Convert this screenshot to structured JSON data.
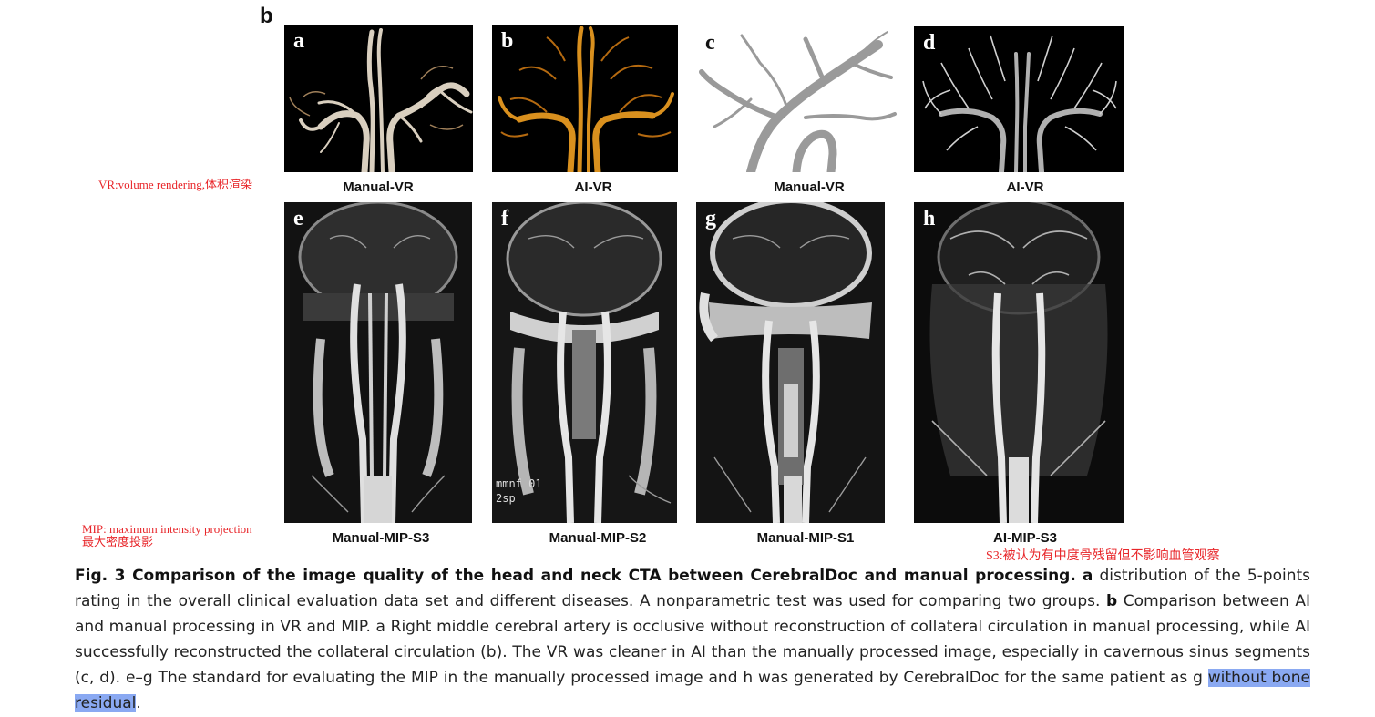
{
  "figure_label": "b",
  "panels": [
    {
      "letter": "a",
      "label": "Manual-VR"
    },
    {
      "letter": "b",
      "label": "AI-VR"
    },
    {
      "letter": "c",
      "label": "Manual-VR"
    },
    {
      "letter": "d",
      "label": "AI-VR"
    },
    {
      "letter": "e",
      "label": "Manual-MIP-S3"
    },
    {
      "letter": "f",
      "label": "Manual-MIP-S2"
    },
    {
      "letter": "g",
      "label": "Manual-MIP-S1"
    },
    {
      "letter": "h",
      "label": "AI-MIP-S3"
    }
  ],
  "overlay_text": {
    "panel_f": [
      "mmnf 01",
      "2sp"
    ]
  },
  "annotations": {
    "vr_note": "VR:volume rendering,体积渲染",
    "mip_note_line1": "MIP: maximum intensity projection",
    "mip_note_line2": "最大密度投影",
    "s3_note": "S3:被认为有中度骨残留但不影响血管观察"
  },
  "caption": {
    "title": "Fig. 3 Comparison of the image quality of the head and neck CTA between CerebralDoc and manual processing.",
    "a_label": "a",
    "a_text": " distribution of the 5-points rating in the overall clinical evaluation data set and different diseases. A nonparametric test was used for comparing two groups. ",
    "b_label": "b",
    "b_text": " Comparison between AI and manual processing in VR and MIP. a Right middle cerebral artery is occlusive without reconstruction of collateral circulation in manual processing, while AI successfully reconstructed the collateral circulation (b). The VR was cleaner in AI than the manually processed image, especially in cavernous sinus segments (c, d). e–g The standard for evaluating the MIP in the manually processed image and h was generated by CerebralDoc for the same patient as g ",
    "highlighted": "without bone residual",
    "end": "."
  },
  "colors": {
    "annotation_red": "#e8262a",
    "highlight_blue": "#8aa9f2",
    "vr_manual": "#d9cfbf",
    "vr_ai": "#d9901e",
    "vr_gray": "#9a9a9a"
  }
}
